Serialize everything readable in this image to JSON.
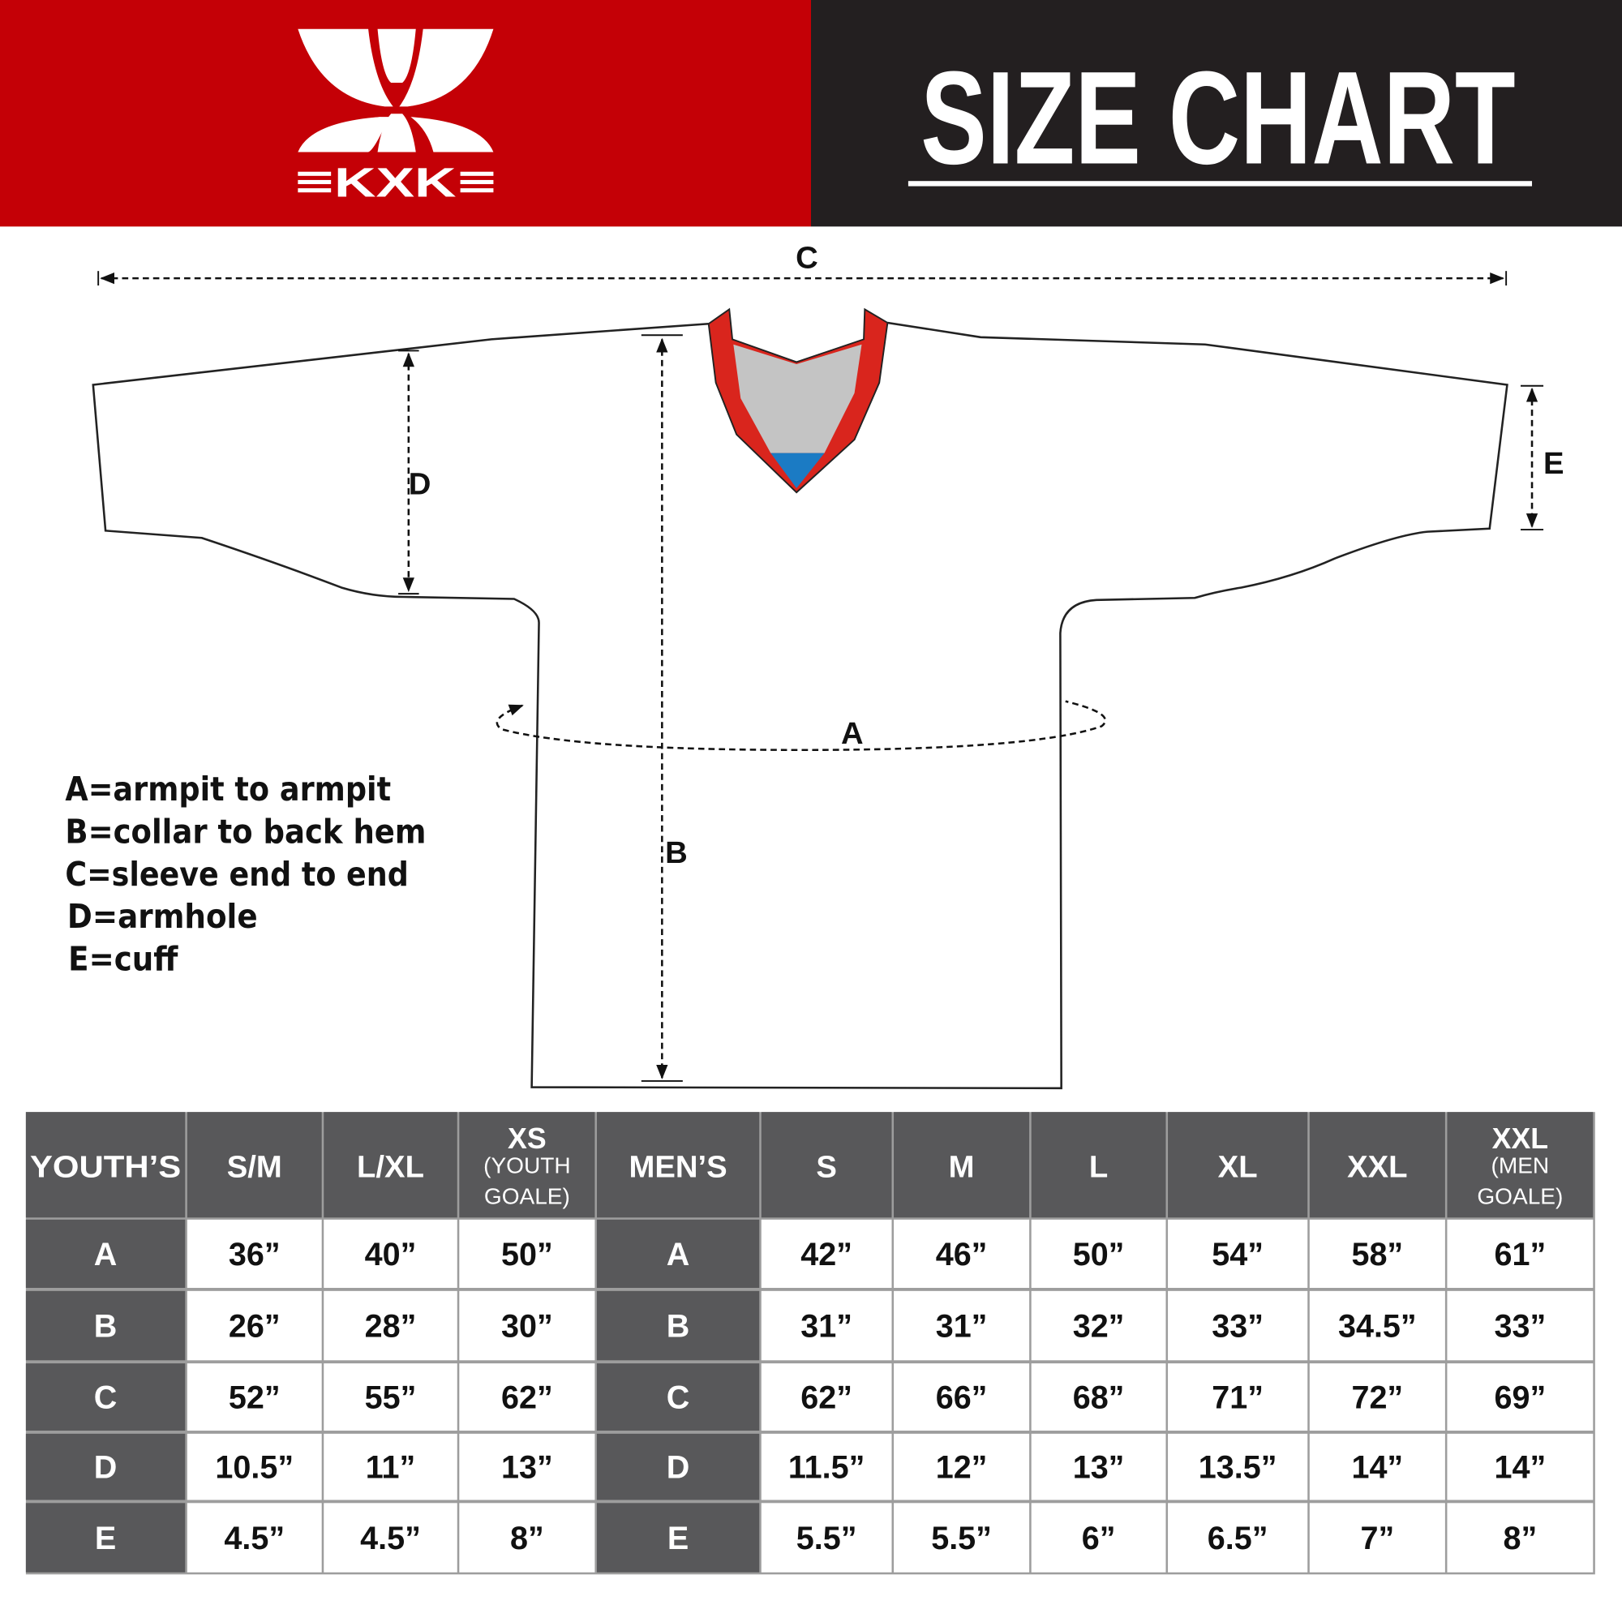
{
  "header": {
    "brand_logo_text": "KXK",
    "title": "SIZE CHART",
    "colors": {
      "brand_red": "#c40006",
      "dark": "#231f20"
    }
  },
  "diagram": {
    "labels": {
      "a": "A",
      "b": "B",
      "c": "C",
      "d": "D",
      "e": "E"
    },
    "legend": [
      "A=armpit to armpit",
      "B=collar to back hem",
      "C=sleeve end to end",
      "D=armhole",
      "E=cuff"
    ],
    "colors": {
      "collar_trim": "#d9251d",
      "collar_inner": "#c4c4c4",
      "collar_tip": "#1b7bc4"
    }
  },
  "table": {
    "headers": [
      [
        "YOUTH’S"
      ],
      [
        "S/M"
      ],
      [
        "L/XL"
      ],
      [
        "XS",
        "(YOUTH",
        "GOALE)"
      ],
      [
        "MEN’S"
      ],
      [
        "S"
      ],
      [
        "M"
      ],
      [
        "L"
      ],
      [
        "XL"
      ],
      [
        "XXL"
      ],
      [
        "XXL",
        "(MEN",
        "GOALE)"
      ]
    ],
    "rows": [
      [
        "A",
        "36”",
        "40”",
        "50”",
        "A",
        "42”",
        "46”",
        "50”",
        "54”",
        "58”",
        "61”"
      ],
      [
        "B",
        "26”",
        "28”",
        "30”",
        "B",
        "31”",
        "31”",
        "32”",
        "33”",
        "34.5”",
        "33”"
      ],
      [
        "C",
        "52”",
        "55”",
        "62”",
        "C",
        "62”",
        "66”",
        "68”",
        "71”",
        "72”",
        "69”"
      ],
      [
        "D",
        "10.5”",
        "11”",
        "13”",
        "D",
        "11.5”",
        "12”",
        "13”",
        "13.5”",
        "14”",
        "14”"
      ],
      [
        "E",
        "4.5”",
        "4.5”",
        "8”",
        "E",
        "5.5”",
        "5.5”",
        "6”",
        "6.5”",
        "7”",
        "8”"
      ]
    ],
    "colors": {
      "header_bg": "#58585a",
      "separator": "#9d9d9d"
    }
  }
}
